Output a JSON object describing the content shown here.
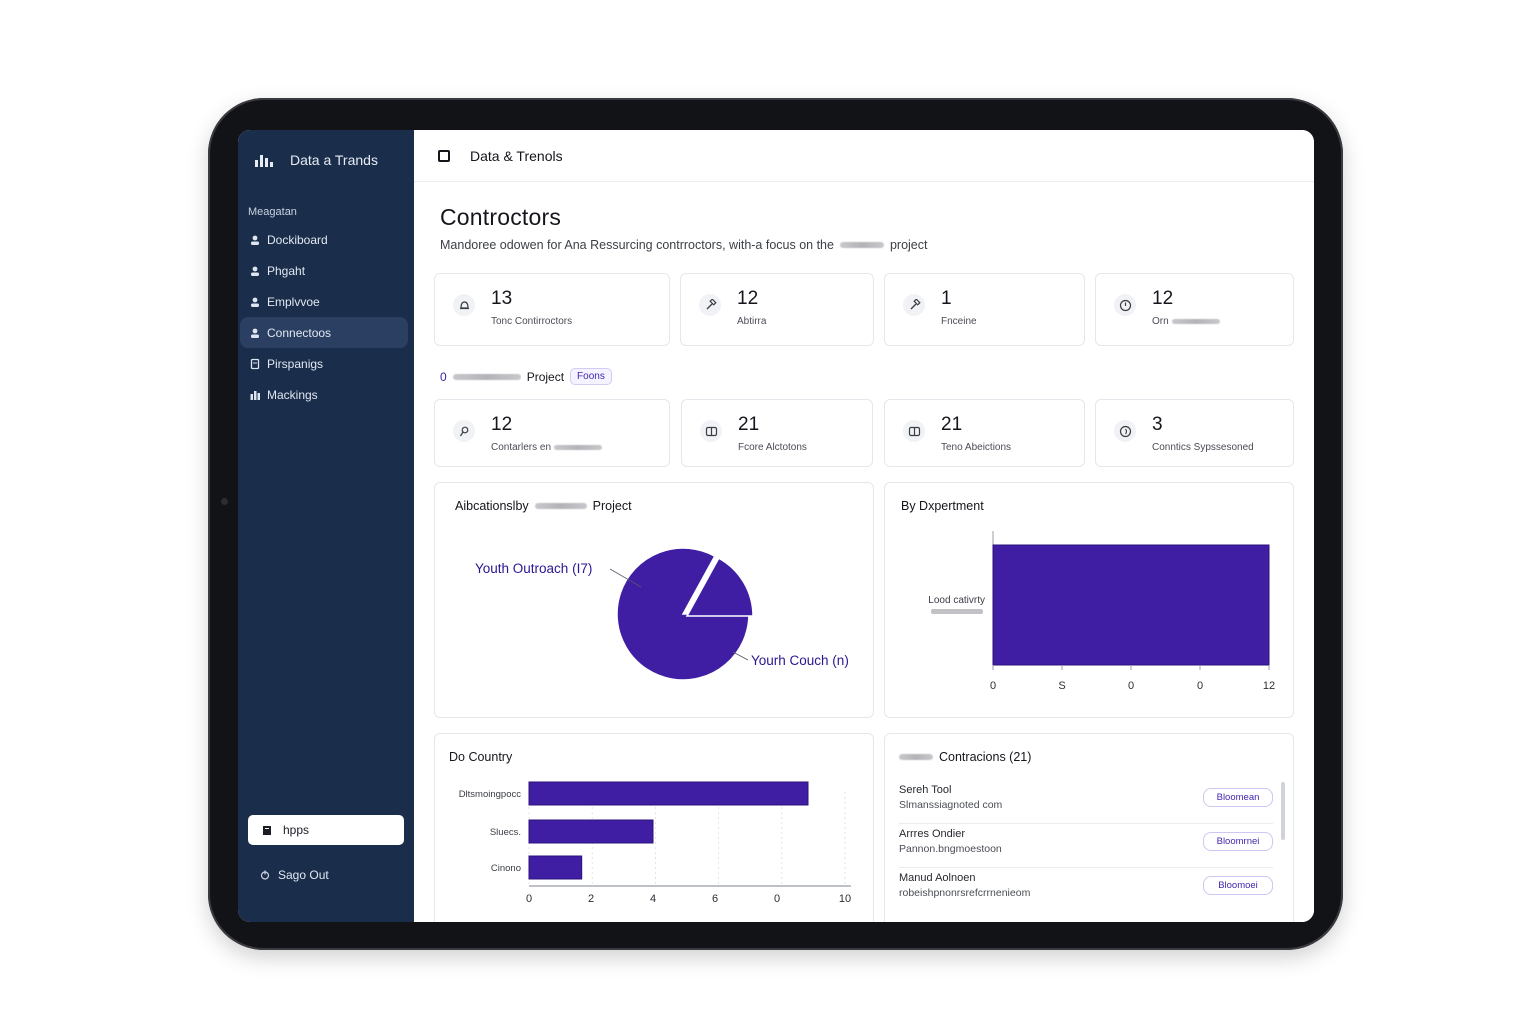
{
  "brand": {
    "name": "Data a Trands"
  },
  "sidebar": {
    "section_label": "Meagatan",
    "items": [
      {
        "label": "Dockiboard",
        "icon": "user-icon"
      },
      {
        "label": "Phgaht",
        "icon": "user-icon"
      },
      {
        "label": "Emplvvoe",
        "icon": "user-icon"
      },
      {
        "label": "Connectoos",
        "icon": "user-icon",
        "active": true
      },
      {
        "label": "Pirspanigs",
        "icon": "doc-icon"
      },
      {
        "label": "Mackings",
        "icon": "chart-icon"
      }
    ],
    "apps_label": "hpps",
    "signout_label": "Sago Out"
  },
  "topbar": {
    "title": "Data & Trenols"
  },
  "page": {
    "title": "Controctors",
    "subtitle_before": "Mandoree odowen for Ana Ressurcing contrroctors, with-a focus on the",
    "subtitle_after": "project"
  },
  "stats_top": [
    {
      "value": "13",
      "label": "Tonc Contirroctors",
      "icon": "bell-icon"
    },
    {
      "value": "12",
      "label": "Abtirra",
      "icon": "gavel-icon"
    },
    {
      "value": "1",
      "label": "Fnceine",
      "icon": "gavel-icon"
    },
    {
      "value": "12",
      "label": "Orn",
      "icon": "clock-icon"
    }
  ],
  "project_row": {
    "zero": "0",
    "label": "Project",
    "badge": "Foons"
  },
  "stats_bottom": [
    {
      "value": "12",
      "label": "Contarlers en",
      "icon": "pin-icon"
    },
    {
      "value": "21",
      "label": "Fcore Alctotons",
      "icon": "book-icon"
    },
    {
      "value": "21",
      "label": "Teno Abeictions",
      "icon": "book-icon"
    },
    {
      "value": "3",
      "label": "Conntics Sypssesoned",
      "icon": "globe-icon"
    }
  ],
  "panels": {
    "pie_title_before": "Aibcationslby",
    "pie_title_after": "Project",
    "dept_title": "By Dxpertment",
    "country_title": "Do Country",
    "contacts_title": "Contracions (21)"
  },
  "contacts": [
    {
      "name": "Sereh Tool",
      "email": "Slmanssiagnoted com",
      "tag": "Bloomean"
    },
    {
      "name": "Arrres Ondier",
      "email": "Pannon.bngmoestoon",
      "tag": "Bloomrnei"
    },
    {
      "name": "Manud Aolnoen",
      "email": "robeishpnonrsrefcrrnenieom",
      "tag": "Bloomoei"
    }
  ],
  "colors": {
    "accent": "#3f1ea3",
    "sidebar": "#1a2d4b"
  },
  "chart_data": [
    {
      "type": "pie",
      "title": "Aibcationslby Project",
      "slices": [
        {
          "label": "Youth Outroach (I7)",
          "value": 83
        },
        {
          "label": "Yourh Couch (n)",
          "value": 17
        }
      ]
    },
    {
      "type": "bar",
      "title": "By Dxpertment",
      "orientation": "vertical",
      "categories": [
        "Lood cativrty"
      ],
      "values": [
        12
      ],
      "xticks": [
        "0",
        "S",
        "0",
        "0",
        "12"
      ],
      "ylim": [
        0,
        12
      ]
    },
    {
      "type": "bar",
      "title": "Do Country",
      "orientation": "horizontal",
      "categories": [
        "Dltsmoingpocc",
        "Sluecs.",
        "Cinono"
      ],
      "values": [
        9,
        4,
        1.7
      ],
      "xticks": [
        "0",
        "2",
        "4",
        "6",
        "0",
        "10"
      ],
      "xlim": [
        0,
        10
      ]
    }
  ]
}
